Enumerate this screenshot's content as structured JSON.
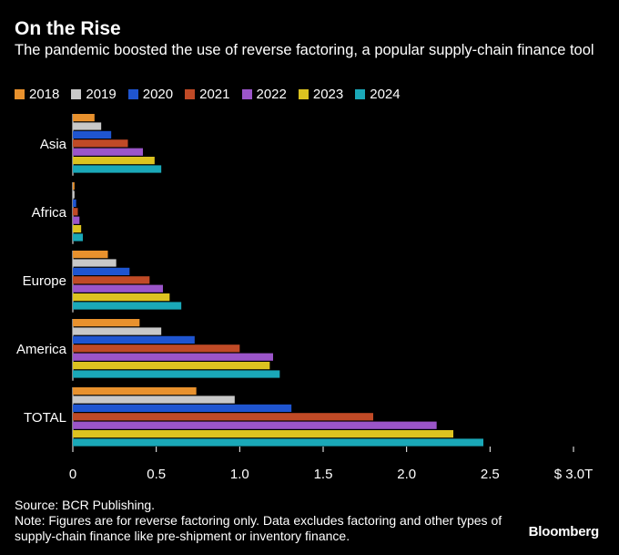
{
  "header": {
    "title": "On the Rise",
    "subtitle": "The pandemic boosted the use of reverse factoring, a popular supply-chain finance tool"
  },
  "chart_data": {
    "type": "bar",
    "orientation": "horizontal",
    "categories": [
      "Asia",
      "Africa",
      "Europe",
      "America",
      "TOTAL"
    ],
    "series": [
      {
        "name": "2018",
        "color": "#e8912d",
        "values": [
          0.13,
          0.01,
          0.21,
          0.4,
          0.74
        ]
      },
      {
        "name": "2019",
        "color": "#c8c8c8",
        "values": [
          0.17,
          0.01,
          0.26,
          0.53,
          0.97
        ]
      },
      {
        "name": "2020",
        "color": "#1f55d0",
        "values": [
          0.23,
          0.02,
          0.34,
          0.73,
          1.31
        ]
      },
      {
        "name": "2021",
        "color": "#c04a26",
        "values": [
          0.33,
          0.03,
          0.46,
          1.0,
          1.8
        ]
      },
      {
        "name": "2022",
        "color": "#9b55c9",
        "values": [
          0.42,
          0.04,
          0.54,
          1.2,
          2.18
        ]
      },
      {
        "name": "2023",
        "color": "#dcc320",
        "values": [
          0.49,
          0.05,
          0.58,
          1.18,
          2.28
        ]
      },
      {
        "name": "2024",
        "color": "#1aa8b8",
        "values": [
          0.53,
          0.06,
          0.65,
          1.24,
          2.46
        ]
      }
    ],
    "xticks": [
      0,
      0.5,
      1.0,
      1.5,
      2.0,
      2.5,
      3.0
    ],
    "xtick_labels": [
      "0",
      "0.5",
      "1.0",
      "1.5",
      "2.0",
      "2.5",
      "$ 3.0T"
    ],
    "xlim": [
      0,
      3.0
    ],
    "grid": false,
    "legend": "top"
  },
  "footer": {
    "source": "Source: BCR Publishing.",
    "note": "Note: Figures are for reverse factoring only. Data excludes factoring and other types of supply-chain finance like pre-shipment or inventory finance."
  },
  "brand": "Bloomberg"
}
